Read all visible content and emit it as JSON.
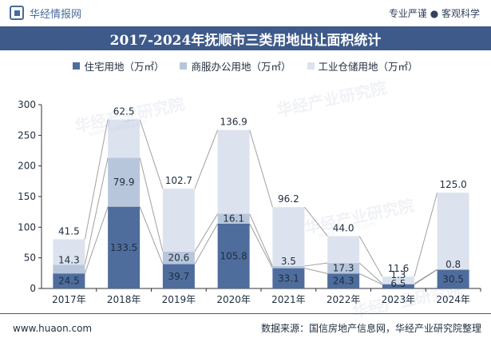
{
  "header": {
    "brand_name": "华经情报网",
    "slogan": "专业严谨 ● 客观科学"
  },
  "watermark": {
    "text": "华经产业研究院",
    "sub": "www.huaon.com"
  },
  "footer": {
    "site": "www.huaon.com",
    "source": "数据来源：国信房地产信息网，华经产业研究院整理"
  },
  "colors": {
    "title_bg": "#3e5a8a",
    "residential": "#4e6d9d",
    "commercial": "#b8c6dc",
    "industrial": "#dde3ee",
    "connector": "#a0a0a0"
  },
  "chart_data": {
    "type": "bar",
    "stacked": true,
    "title": "2017-2024年抚顺市三类用地出让面积统计",
    "categories": [
      "2017年",
      "2018年",
      "2019年",
      "2020年",
      "2021年",
      "2022年",
      "2023年",
      "2024年"
    ],
    "series": [
      {
        "name": "住宅用地（万㎡）",
        "values": [
          24.5,
          133.5,
          39.7,
          105.8,
          33.1,
          24.3,
          6.5,
          30.5
        ]
      },
      {
        "name": "商服办公用地（万㎡）",
        "values": [
          14.3,
          79.9,
          20.6,
          16.1,
          3.5,
          17.3,
          1.3,
          0.8
        ]
      },
      {
        "name": "工业仓储用地（万㎡）",
        "values": [
          41.5,
          62.5,
          102.7,
          136.9,
          96.2,
          44.0,
          11.6,
          125.0
        ]
      }
    ],
    "ylim": [
      0,
      300
    ],
    "yticks": [
      0,
      50,
      100,
      150,
      200,
      250,
      300
    ],
    "legend_position": "top",
    "grid": false
  }
}
